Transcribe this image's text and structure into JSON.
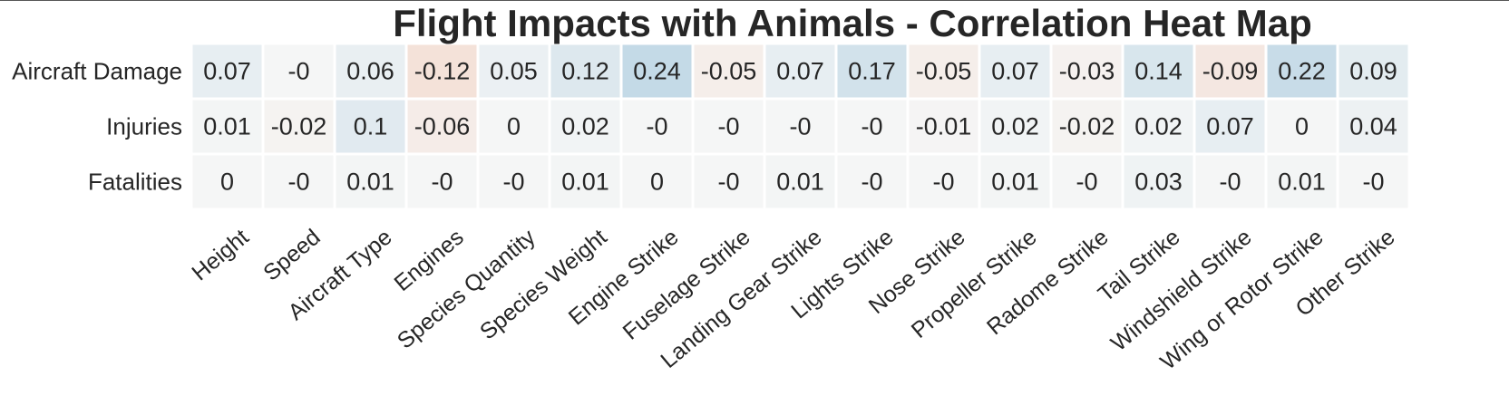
{
  "chart_data": {
    "type": "heatmap",
    "title": "Flight Impacts with Animals - Correlation Heat Map",
    "rows": [
      "Aircraft Damage",
      "Injuries",
      "Fatalities"
    ],
    "columns": [
      "Height",
      "Speed",
      "Aircraft Type",
      "Engines",
      "Species Quantity",
      "Species Weight",
      "Engine Strike",
      "Fuselage Strike",
      "Landing Gear Strike",
      "Lights Strike",
      "Nose Strike",
      "Propeller Strike",
      "Radome Strike",
      "Tail Strike",
      "Windshield Strike",
      "Wing or Rotor Strike",
      "Other Strike"
    ],
    "values": [
      [
        0.07,
        0,
        0.06,
        -0.12,
        0.05,
        0.12,
        0.24,
        -0.05,
        0.07,
        0.17,
        -0.05,
        0.07,
        -0.03,
        0.14,
        -0.09,
        0.22,
        0.09
      ],
      [
        0.01,
        -0.02,
        0.1,
        -0.06,
        0,
        0.02,
        0,
        0,
        0,
        0,
        -0.01,
        0.02,
        -0.02,
        0.02,
        0.07,
        0,
        0.04
      ],
      [
        0,
        0,
        0.01,
        0,
        0,
        0.01,
        0,
        0,
        0.01,
        0,
        0,
        0.01,
        0,
        0.03,
        0,
        0.01,
        0
      ]
    ],
    "labels": [
      [
        "0.07",
        "-0",
        "0.06",
        "-0.12",
        "0.05",
        "0.12",
        "0.24",
        "-0.05",
        "0.07",
        "0.17",
        "-0.05",
        "0.07",
        "-0.03",
        "0.14",
        "-0.09",
        "0.22",
        "0.09"
      ],
      [
        "0.01",
        "-0.02",
        "0.1",
        "-0.06",
        "0",
        "0.02",
        "-0",
        "-0",
        "-0",
        "-0",
        "-0.01",
        "0.02",
        "-0.02",
        "0.02",
        "0.07",
        "0",
        "0.04"
      ],
      [
        "0",
        "-0",
        "0.01",
        "-0",
        "-0",
        "0.01",
        "0",
        "-0",
        "0.01",
        "-0",
        "-0",
        "0.01",
        "-0",
        "0.03",
        "-0",
        "0.01",
        "-0"
      ]
    ],
    "colormap": {
      "negative": "#f2a27f",
      "neutral": "#f5f6f6",
      "positive": "#8fbcd6"
    },
    "grid": false,
    "legend": "none"
  }
}
